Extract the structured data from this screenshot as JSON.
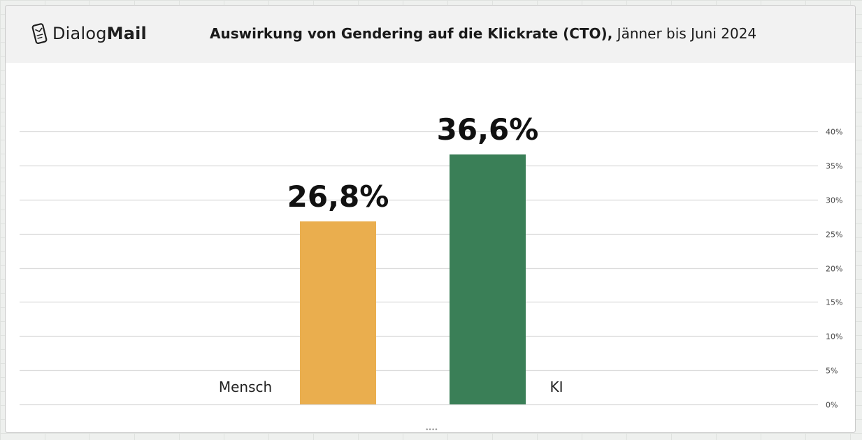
{
  "header": {
    "logo_word_regular": "Dialog",
    "logo_word_bold": "Mail",
    "title_bold": "Auswirkung von Gendering auf die Klickrate (CTO),",
    "title_regular": " Jänner bis Juni 2024"
  },
  "chart_data": {
    "type": "bar",
    "categories": [
      "Mensch",
      "KI"
    ],
    "values": [
      26.8,
      36.6
    ],
    "data_labels": [
      "26,8%",
      "36,6%"
    ],
    "colors": [
      "#EAAE4E",
      "#3A7F57"
    ],
    "ylim": [
      0,
      40
    ],
    "y_ticks": [
      0,
      5,
      10,
      15,
      20,
      25,
      30,
      35,
      40
    ],
    "y_tick_labels": [
      "0%",
      "5%",
      "10%",
      "15%",
      "20%",
      "25%",
      "30%",
      "35%",
      "40%"
    ],
    "y_axis_position": "right",
    "grid": true,
    "gridline_color": "#dcdcdc"
  }
}
